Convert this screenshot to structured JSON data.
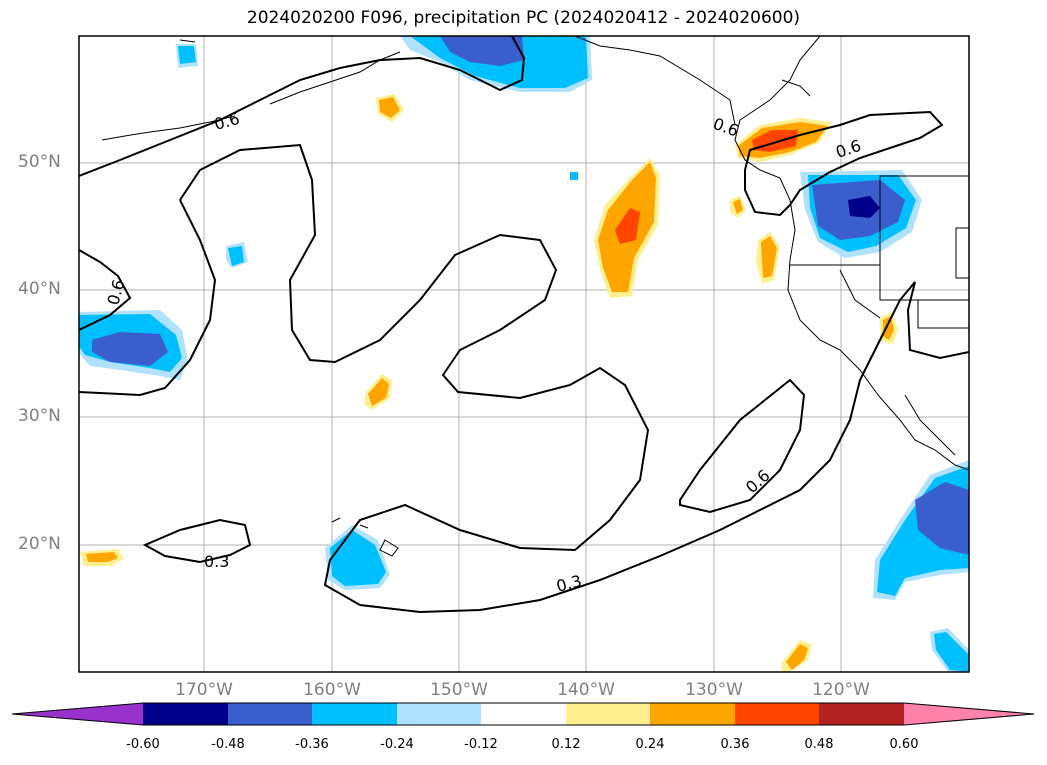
{
  "title": "2024020200 F096, precipitation PC (2024020412 - 2024020600)",
  "map": {
    "lat_ticks": [
      "50°N",
      "40°N",
      "30°N",
      "20°N"
    ],
    "lon_ticks": [
      "170°W",
      "160°W",
      "150°W",
      "140°W",
      "130°W",
      "120°W"
    ],
    "contour_labels": [
      "0.6",
      "0.6",
      "0.6",
      "0.6",
      "0.6",
      "0.3",
      "0.3"
    ]
  },
  "colorbar": {
    "tick_labels": [
      "-0.60",
      "-0.48",
      "-0.36",
      "-0.24",
      "-0.12",
      "0.12",
      "0.24",
      "0.36",
      "0.48",
      "0.60"
    ],
    "colors": [
      "#9932cc",
      "#00008b",
      "#3a5fcd",
      "#00bfff",
      "#b0e2ff",
      "#ffffff",
      "#fff08f",
      "#ffa500",
      "#ff4500",
      "#b22222",
      "#ff82ab"
    ]
  }
}
